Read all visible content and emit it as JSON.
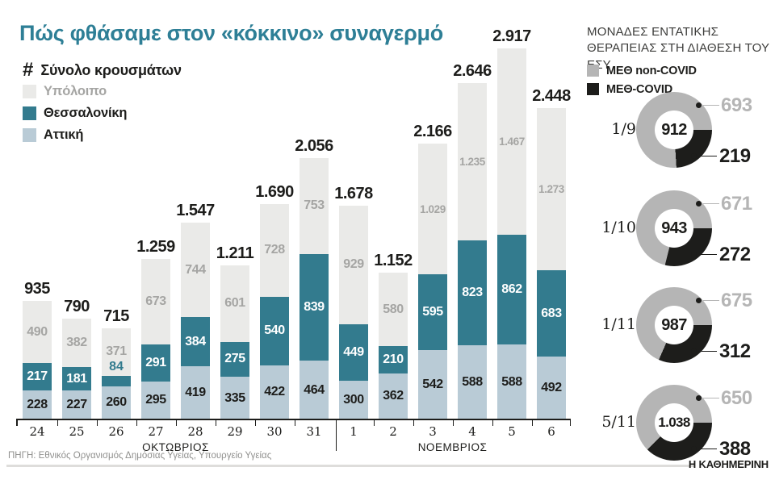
{
  "title": "Πώς φθάσαμε στον «κόκκινο» συναγερμό",
  "cases_legend": {
    "symbol": "#",
    "total_label": "Σύνολο κρουσμάτων",
    "items": [
      {
        "label": "Υπόλοιπο",
        "color": "#eaeae8",
        "text_color": "#a5a5a3"
      },
      {
        "label": "Θεσσαλονίκη",
        "color": "#337b8e",
        "text_color": "#1d1d1b"
      },
      {
        "label": "Αττική",
        "color": "#b9cbd6",
        "text_color": "#1d1d1b"
      }
    ]
  },
  "chart_data": [
    {
      "type": "bar",
      "stacked": true,
      "categories": [
        "24",
        "25",
        "26",
        "27",
        "28",
        "29",
        "30",
        "31",
        "1",
        "2",
        "3",
        "4",
        "5",
        "6"
      ],
      "month_groups": [
        {
          "label": "ΟΚΤΩΒΡΙΟΣ",
          "start": 0,
          "count": 8
        },
        {
          "label": "ΝΟΕΜΒΡΙΟΣ",
          "start": 8,
          "count": 6
        }
      ],
      "series": [
        {
          "name": "Αττική",
          "color": "#b9cbd6",
          "label_color": "#1d1d1b",
          "values": [
            228,
            227,
            260,
            295,
            419,
            335,
            422,
            464,
            300,
            362,
            542,
            588,
            588,
            492
          ]
        },
        {
          "name": "Θεσσαλονίκη",
          "color": "#337b8e",
          "label_color": "#ffffff",
          "values": [
            217,
            181,
            84,
            291,
            384,
            275,
            540,
            839,
            449,
            210,
            595,
            823,
            862,
            683
          ]
        },
        {
          "name": "Υπόλοιπο",
          "color": "#eaeae8",
          "label_color": "#a5a5a3",
          "values": [
            490,
            382,
            371,
            673,
            744,
            601,
            728,
            753,
            929,
            580,
            1029,
            1235,
            1467,
            1273
          ]
        }
      ],
      "totals": [
        935,
        790,
        715,
        1259,
        1547,
        1211,
        1690,
        2056,
        1678,
        1152,
        2166,
        2646,
        2917,
        2448
      ],
      "ylim": [
        0,
        2917
      ],
      "grid": false,
      "value_labels": "on-segments"
    },
    {
      "type": "donut",
      "title": "ΜΟΝΑΔΕΣ ΕΝΤΑΤΙΚΗΣ ΘΕΡΑΠΕΙΑΣ ΣΤΗ ΔΙΑΘΕΣΗ ΤΟΥ ΕΣΥ",
      "legend": [
        {
          "label": "ΜΕΘ non-COVID",
          "color": "#b5b5b5"
        },
        {
          "label": "ΜΕΘ-COVID",
          "color": "#1d1d1b"
        }
      ],
      "donuts": [
        {
          "date": "1/9",
          "total": 912,
          "non_covid": 693,
          "covid": 219
        },
        {
          "date": "1/10",
          "total": 943,
          "non_covid": 671,
          "covid": 272
        },
        {
          "date": "1/11",
          "total": 987,
          "non_covid": 675,
          "covid": 312
        },
        {
          "date": "5/11",
          "total": 1038,
          "non_covid": 650,
          "covid": 388
        }
      ]
    }
  ],
  "footer": {
    "source": "ΠΗΓΗ: Εθνικός Οργανισμός Δημόσιας Υγείας, Υπουργείο Υγείας",
    "brand": "Η ΚΑΘΗΜΕΡΙΝΗ"
  }
}
